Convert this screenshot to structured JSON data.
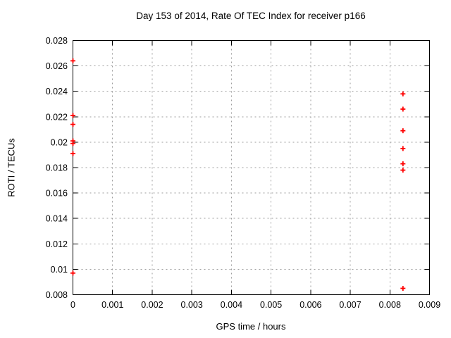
{
  "chart_data": {
    "type": "scatter",
    "title": "Day 153 of 2014, Rate Of TEC Index for receiver p166",
    "xlabel": "GPS time / hours",
    "ylabel": "ROTI / TECUs",
    "xlim": [
      0,
      0.009
    ],
    "ylim": [
      0.008,
      0.028
    ],
    "xticks": {
      "values": [
        0,
        0.001,
        0.002,
        0.003,
        0.004,
        0.005,
        0.006,
        0.007,
        0.008,
        0.009
      ],
      "labels": [
        "0",
        "0.001",
        "0.002",
        "0.003",
        "0.004",
        "0.005",
        "0.006",
        "0.007",
        "0.008",
        "0.009"
      ]
    },
    "yticks": {
      "values": [
        0.008,
        0.01,
        0.012,
        0.014,
        0.016,
        0.018,
        0.02,
        0.022,
        0.024,
        0.026,
        0.028
      ],
      "labels": [
        "0.008",
        "0.01",
        "0.012",
        "0.014",
        "0.016",
        "0.018",
        "0.02",
        "0.022",
        "0.024",
        "0.026",
        "0.028"
      ]
    },
    "grid": "dotted",
    "grid_color": "#9e9e9e",
    "border_color": "#000000",
    "legend": "none",
    "series": [
      {
        "marker": "plus",
        "color": "#ff0000",
        "points": [
          [
            0,
            0.0264
          ],
          [
            0,
            0.0221
          ],
          [
            0,
            0.0214
          ],
          [
            0,
            0.0201
          ],
          [
            0,
            0.0199
          ],
          [
            0,
            0.0191
          ],
          [
            0,
            0.0097
          ],
          [
            0.00833,
            0.0238
          ],
          [
            0.00833,
            0.0226
          ],
          [
            0.00833,
            0.0209
          ],
          [
            0.00833,
            0.0195
          ],
          [
            0.00833,
            0.0183
          ],
          [
            0.00833,
            0.0178
          ],
          [
            0.00833,
            0.0085
          ]
        ]
      }
    ]
  }
}
